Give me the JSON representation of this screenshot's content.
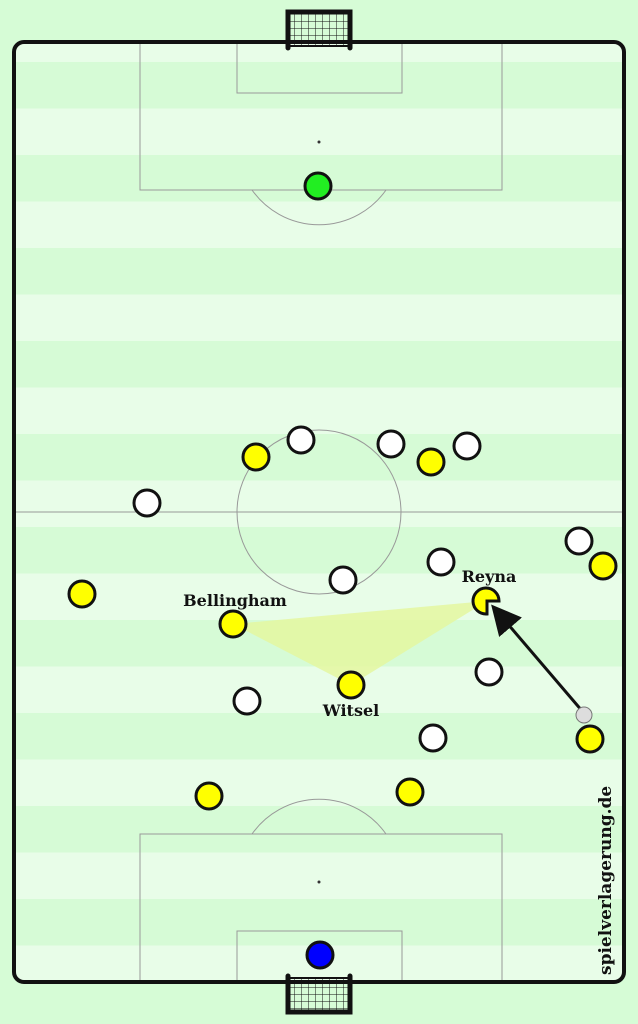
{
  "colors": {
    "pitch_light": "#e8fde8",
    "pitch_dark": "#d6fbd6",
    "team_yellow": "#ffff00",
    "team_white": "#ffffff",
    "goalkeeper_top": "#22ee22",
    "goalkeeper_bottom": "#0000ff",
    "passing_triangle": "#e4f7a0"
  },
  "labels": {
    "bellingham": "Bellingham",
    "reyna": "Reyna",
    "witsel": "Witsel"
  },
  "watermark": "spielverlagerung.de",
  "icons": [
    "goal-net-icon",
    "ball-icon",
    "arrow-icon"
  ]
}
